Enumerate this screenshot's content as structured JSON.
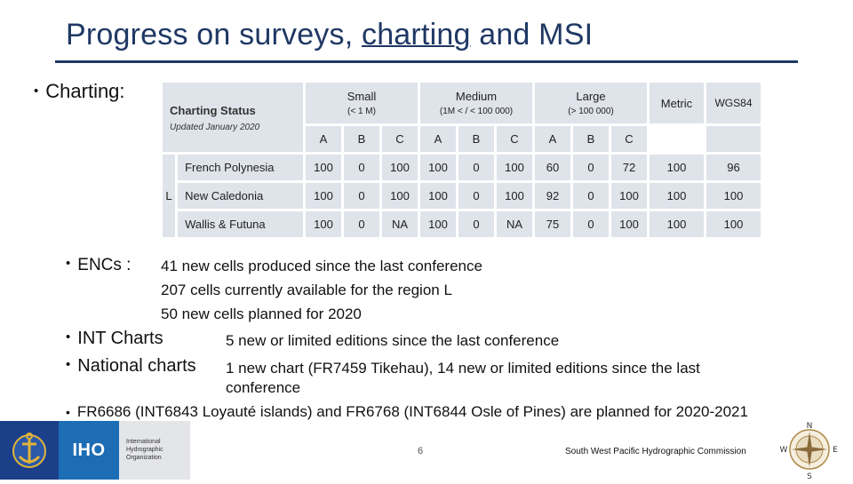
{
  "slide": {
    "title_pre": "Progress on surveys, ",
    "title_link": "charting",
    "title_post": " and MSI",
    "page_number": "6",
    "footer_org": "South West Pacific Hydrographic Commission"
  },
  "bullets": {
    "charting": "Charting:",
    "encs": "ENCs :",
    "int_charts": "INT Charts",
    "national_charts": "National charts"
  },
  "encs_lines": [
    "41 new cells produced since the last conference",
    "207 cells currently available for the region L",
    "50 new cells planned for 2020"
  ],
  "int_text": "5 new or limited editions since the last conference",
  "national_text_1": "1 new chart (FR7459 Tikehau), 14 new or limited editions since the last",
  "national_text_2": "conference",
  "fr_line": "FR6686 (INT6843 Loyauté islands)  and FR6768 (INT6844 Osle of Pines) are planned for 2020-2021",
  "table": {
    "status_title": "Charting Status",
    "status_updated": "Updated January 2020",
    "region": "L",
    "groups": [
      {
        "name": "Small",
        "sub": "(< 1 M)"
      },
      {
        "name": "Medium",
        "sub": "(1M < / < 100 000)"
      },
      {
        "name": "Large",
        "sub": "(> 100 000)"
      }
    ],
    "metric_label": "Metric",
    "wgs_label": "WGS84",
    "subheaders": [
      "A",
      "B",
      "C",
      "A",
      "B",
      "C",
      "A",
      "B",
      "C"
    ],
    "rows": [
      {
        "name": "French Polynesia",
        "values": [
          "100",
          "0",
          "100",
          "100",
          "0",
          "100",
          "60",
          "0",
          "72",
          "100",
          "96"
        ]
      },
      {
        "name": "New Caledonia",
        "values": [
          "100",
          "0",
          "100",
          "100",
          "0",
          "100",
          "92",
          "0",
          "100",
          "100",
          "100"
        ]
      },
      {
        "name": "Wallis & Futuna",
        "values": [
          "100",
          "0",
          "NA",
          "100",
          "0",
          "NA",
          "75",
          "0",
          "100",
          "100",
          "100"
        ]
      }
    ]
  },
  "logos": {
    "iho_label": "IHO",
    "iho_org_text": "International\nHydrographic\nOrganization",
    "compass_n": "N",
    "compass_s": "S",
    "compass_e": "E",
    "compass_w": "W"
  },
  "colors": {
    "title": "#1f3864",
    "table_cell": "#dfe3ea",
    "iho_dark": "#1c3f8a",
    "iho_light": "#1d6db5"
  }
}
